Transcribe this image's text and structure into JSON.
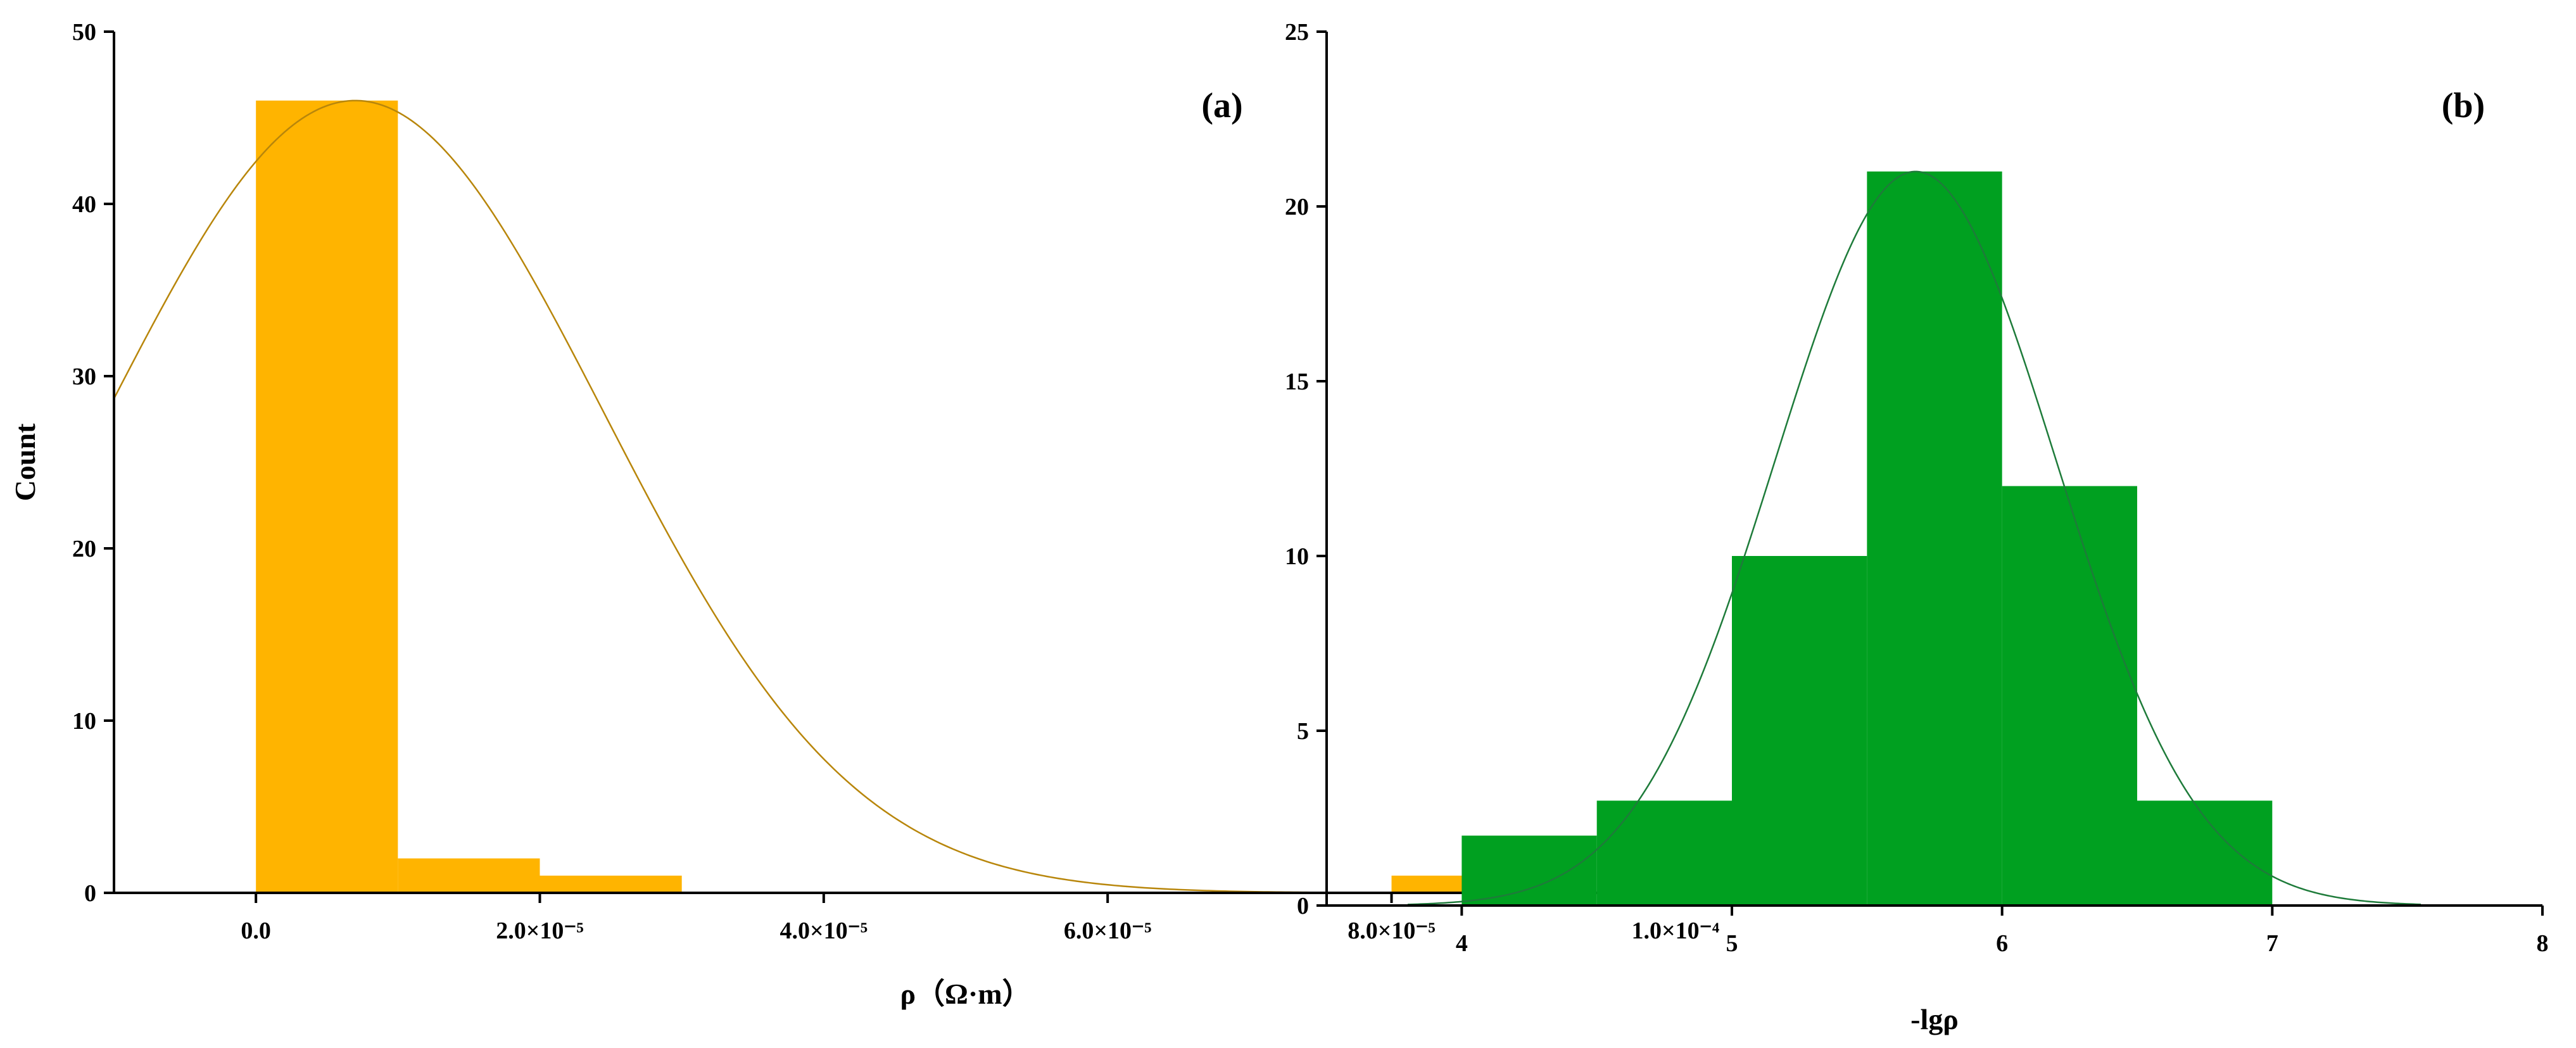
{
  "chart_data": [
    {
      "id": "a",
      "type": "bar",
      "panel_label": "(a)",
      "xlabel": "ρ（Ω·m）",
      "ylabel": "Count",
      "xlim": [
        -1e-05,
        0.00011
      ],
      "ylim": [
        0,
        50
      ],
      "x_ticks": [
        0,
        2e-05,
        4e-05,
        6e-05,
        8e-05,
        0.0001
      ],
      "x_tick_labels": [
        "0.0",
        "2.0×10⁻⁵",
        "4.0×10⁻⁵",
        "6.0×10⁻⁵",
        "8.0×10⁻⁵",
        "1.0×10⁻⁴"
      ],
      "y_ticks": [
        0,
        10,
        20,
        30,
        40,
        50
      ],
      "y_tick_labels": [
        "0",
        "10",
        "20",
        "30",
        "40",
        "50"
      ],
      "bar_color": "#FFB400",
      "curve_color": "#B8860B",
      "bins": [
        {
          "x0": 0,
          "x1": 1e-05,
          "count": 46
        },
        {
          "x0": 1e-05,
          "x1": 2e-05,
          "count": 2
        },
        {
          "x0": 2e-05,
          "x1": 3e-05,
          "count": 1
        },
        {
          "x0": 8e-05,
          "x1": 9e-05,
          "count": 1
        },
        {
          "x0": 0.0001,
          "x1": 0.00011,
          "count": 1
        }
      ],
      "normal_fit": {
        "mean": 7e-06,
        "sd": 1.75e-05,
        "peak": 46
      }
    },
    {
      "id": "b",
      "type": "bar",
      "panel_label": "(b)",
      "xlabel": "-lgρ",
      "ylabel": "",
      "xlim": [
        3.5,
        8
      ],
      "ylim": [
        0,
        25
      ],
      "x_ticks": [
        4,
        5,
        6,
        7,
        8
      ],
      "x_tick_labels": [
        "4",
        "5",
        "6",
        "7",
        "8"
      ],
      "y_ticks": [
        0,
        5,
        10,
        15,
        20,
        25
      ],
      "y_tick_labels": [
        "0",
        "5",
        "10",
        "15",
        "20",
        "25"
      ],
      "bar_color": "#00A020",
      "curve_color": "#1E7B3A",
      "bins": [
        {
          "x0": 4.0,
          "x1": 4.5,
          "count": 2
        },
        {
          "x0": 4.5,
          "x1": 5.0,
          "count": 3
        },
        {
          "x0": 5.0,
          "x1": 5.5,
          "count": 10
        },
        {
          "x0": 5.5,
          "x1": 6.0,
          "count": 21
        },
        {
          "x0": 6.0,
          "x1": 6.5,
          "count": 12
        },
        {
          "x0": 6.5,
          "x1": 7.0,
          "count": 3
        }
      ],
      "normal_fit": {
        "mean": 5.68,
        "sd": 0.52,
        "peak": 21,
        "x_range": [
          3.8,
          7.55
        ]
      }
    }
  ]
}
